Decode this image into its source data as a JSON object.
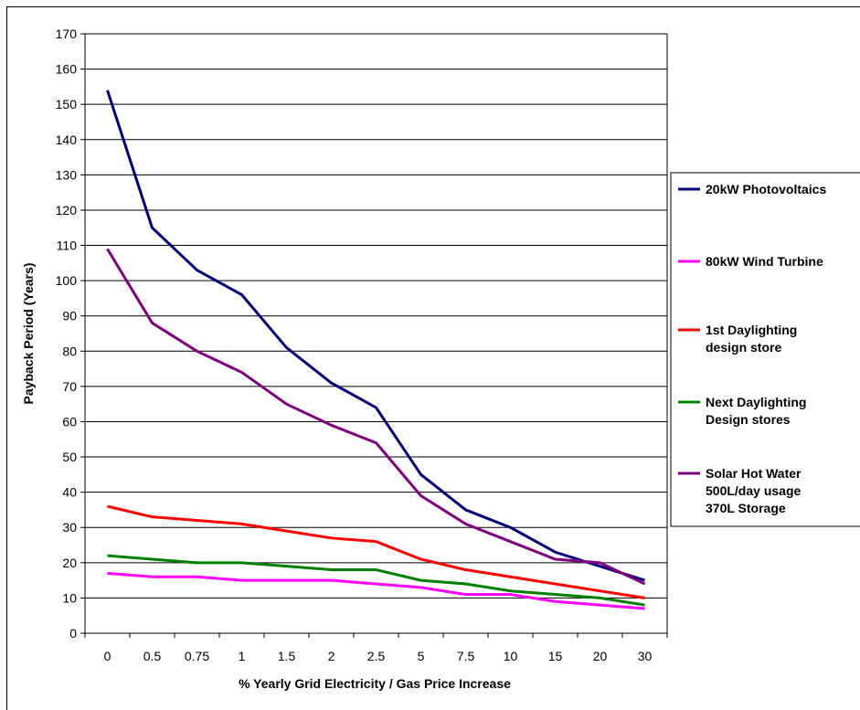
{
  "chart_data": {
    "type": "line",
    "title": "",
    "xlabel": "% Yearly Grid Electricity / Gas Price Increase",
    "ylabel": "Payback Period (Years)",
    "ylim": [
      0,
      170
    ],
    "ytick_step": 10,
    "grid": "horizontal",
    "legend_position": "right",
    "categories": [
      "0",
      "0.5",
      "0.75",
      "1",
      "1.5",
      "2",
      "2.5",
      "5",
      "7.5",
      "10",
      "15",
      "20",
      "30"
    ],
    "series": [
      {
        "name": "20kW Photovoltaics",
        "legend_lines": [
          "20kW Photovoltaics"
        ],
        "color": "#000080",
        "values": [
          154,
          115,
          103,
          96,
          81,
          71,
          64,
          45,
          35,
          30,
          23,
          19,
          15
        ]
      },
      {
        "name": "80kW Wind Turbine",
        "legend_lines": [
          "80kW Wind Turbine"
        ],
        "color": "#FF00FF",
        "values": [
          17,
          16,
          16,
          15,
          15,
          15,
          14,
          13,
          11,
          11,
          9,
          8,
          7
        ]
      },
      {
        "name": "1st Daylighting design store",
        "legend_lines": [
          "1st Daylighting",
          "design store"
        ],
        "color": "#FF0000",
        "values": [
          36,
          33,
          32,
          31,
          29,
          27,
          26,
          21,
          18,
          16,
          14,
          12,
          10
        ]
      },
      {
        "name": "Next Daylighting Design stores",
        "legend_lines": [
          "Next Daylighting",
          "Design stores"
        ],
        "color": "#008000",
        "values": [
          22,
          21,
          20,
          20,
          19,
          18,
          18,
          15,
          14,
          12,
          11,
          10,
          8
        ]
      },
      {
        "name": "Solar Hot Water 500L/day usage 370L Storage",
        "legend_lines": [
          "Solar Hot Water",
          "500L/day usage",
          "370L Storage"
        ],
        "color": "#800080",
        "values": [
          109,
          88,
          80,
          74,
          65,
          59,
          54,
          39,
          31,
          26,
          21,
          20,
          14
        ]
      }
    ]
  }
}
